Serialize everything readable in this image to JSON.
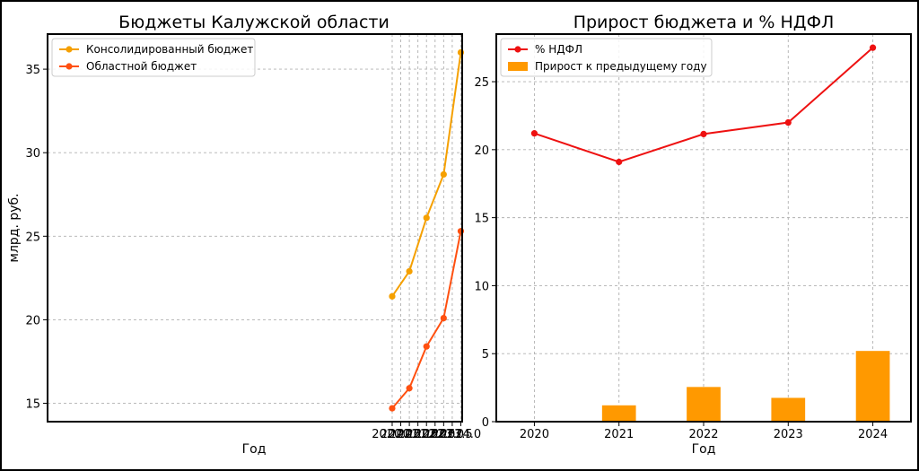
{
  "chart_data": [
    {
      "type": "line",
      "title": "Бюджеты Калужской области",
      "xlabel": "Год",
      "ylabel": "млрд. руб.",
      "xlim": [
        1999.92,
        2024.08
      ],
      "ylim": [
        13.9,
        37.1
      ],
      "x_ticks": [
        2020.0,
        2020.5,
        2021.0,
        2021.5,
        2022.0,
        2022.5,
        2023.0,
        2023.5,
        2024.0
      ],
      "x_tick_labels": [
        "2020.0",
        "2020.5",
        "2021.0",
        "2021.5",
        "2022.0",
        "2022.5",
        "2023.0",
        "2023.5",
        "2024.0"
      ],
      "y_ticks": [
        15,
        20,
        25,
        30,
        35
      ],
      "y_tick_labels": [
        "15",
        "20",
        "25",
        "30",
        "35"
      ],
      "grid": true,
      "legend_position": "top-left",
      "x": [
        2020,
        2021,
        2022,
        2023,
        2024
      ],
      "series": [
        {
          "name": "Консолидированный бюджет",
          "color": "#f5a000",
          "values": [
            21.4,
            22.9,
            26.1,
            28.7,
            36.0
          ]
        },
        {
          "name": "Областной бюджет",
          "color": "#ff5010",
          "values": [
            14.7,
            15.9,
            18.4,
            20.1,
            25.3
          ]
        }
      ]
    },
    {
      "type": "bar+line",
      "title": "Прирост бюджета и % НДФЛ",
      "xlabel": "Год",
      "ylabel": "",
      "ylim": [
        0,
        28.5
      ],
      "categories": [
        "2020",
        "2021",
        "2022",
        "2023",
        "2024"
      ],
      "y_ticks": [
        0,
        5,
        10,
        15,
        20,
        25
      ],
      "y_tick_labels": [
        "0",
        "5",
        "10",
        "15",
        "20",
        "25"
      ],
      "grid": true,
      "legend_position": "top-left",
      "series": [
        {
          "name": "% НДФЛ",
          "kind": "line",
          "color": "#ee1111",
          "values": [
            21.2,
            19.1,
            21.15,
            22.0,
            27.5
          ]
        },
        {
          "name": "Прирост к предыдущему году",
          "kind": "bar",
          "color": "#ff9900",
          "values": [
            0,
            1.2,
            2.55,
            1.75,
            5.2
          ]
        }
      ]
    }
  ]
}
